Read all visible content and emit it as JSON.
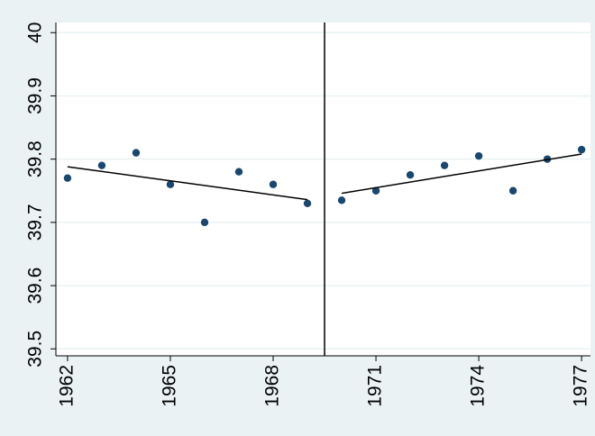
{
  "chart_data": {
    "type": "scatter",
    "xlim": [
      1961.66,
      1977.26
    ],
    "ylim": [
      39.489,
      40.016
    ],
    "xticks": [
      1962,
      1965,
      1968,
      1971,
      1974,
      1977
    ],
    "yticks": [
      39.5,
      39.6,
      39.7,
      39.8,
      39.9,
      40
    ],
    "grid": true,
    "vline": 1969.5,
    "series": [
      {
        "type": "scatter",
        "color": "#1a476f",
        "x": [
          1962,
          1963,
          1964,
          1965,
          1966,
          1967,
          1968,
          1969,
          1970,
          1971,
          1972,
          1973,
          1974,
          1975,
          1976,
          1977
        ],
        "values": [
          39.77,
          39.79,
          39.81,
          39.76,
          39.7,
          39.78,
          39.76,
          39.73,
          39.735,
          39.75,
          39.775,
          39.79,
          39.805,
          39.75,
          39.8,
          39.815
        ]
      },
      {
        "type": "line",
        "color": "#000000",
        "x": [
          1962,
          1969
        ],
        "values": [
          39.788,
          39.736
        ]
      },
      {
        "type": "line",
        "color": "#000000",
        "x": [
          1970,
          1977
        ],
        "values": [
          39.746,
          39.808
        ]
      }
    ]
  }
}
